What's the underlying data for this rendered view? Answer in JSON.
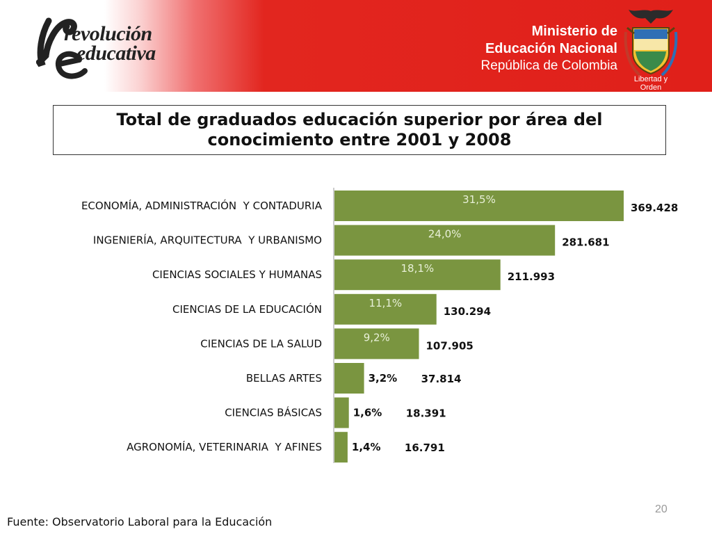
{
  "header": {
    "logo_line1": "revolución",
    "logo_line2": "educativa",
    "ministry_line1": "Ministerio de",
    "ministry_line2": "Educación Nacional",
    "ministry_line3": "República de Colombia",
    "motto": "Libertad y Orden"
  },
  "colors": {
    "bar": "#7a9540",
    "header_red": "#e0201a"
  },
  "chart_data": {
    "type": "bar",
    "orientation": "horizontal",
    "title": "Total de graduados educación superior por área del conocimiento entre 2001 y 2008",
    "categories": [
      "ECONOMÍA, ADMINISTRACIÓN  Y CONTADURIA",
      "INGENIERÍA, ARQUITECTURA  Y URBANISMO",
      "CIENCIAS SOCIALES Y HUMANAS",
      "CIENCIAS DE LA EDUCACIÓN",
      "CIENCIAS DE LA SALUD",
      "BELLAS ARTES",
      "CIENCIAS BÁSICAS",
      "AGRONOMÍA, VETERINARIA  Y AFINES"
    ],
    "values": [
      369428,
      281681,
      211993,
      130294,
      107905,
      37814,
      18391,
      16791
    ],
    "value_labels": [
      "369.428",
      "281.681",
      "211.993",
      "130.294",
      "107.905",
      "37.814",
      "18.391",
      "16.791"
    ],
    "percent_labels": [
      "31,5%",
      "24,0%",
      "18,1%",
      "11,1%",
      "9,2%",
      "3,2%",
      "1,6%",
      "1,4%"
    ],
    "xlim": [
      0,
      369428
    ],
    "grid": false,
    "legend": "none"
  },
  "footer": {
    "source": "Fuente: Observatorio Laboral para la Educación",
    "page_number": "20"
  }
}
